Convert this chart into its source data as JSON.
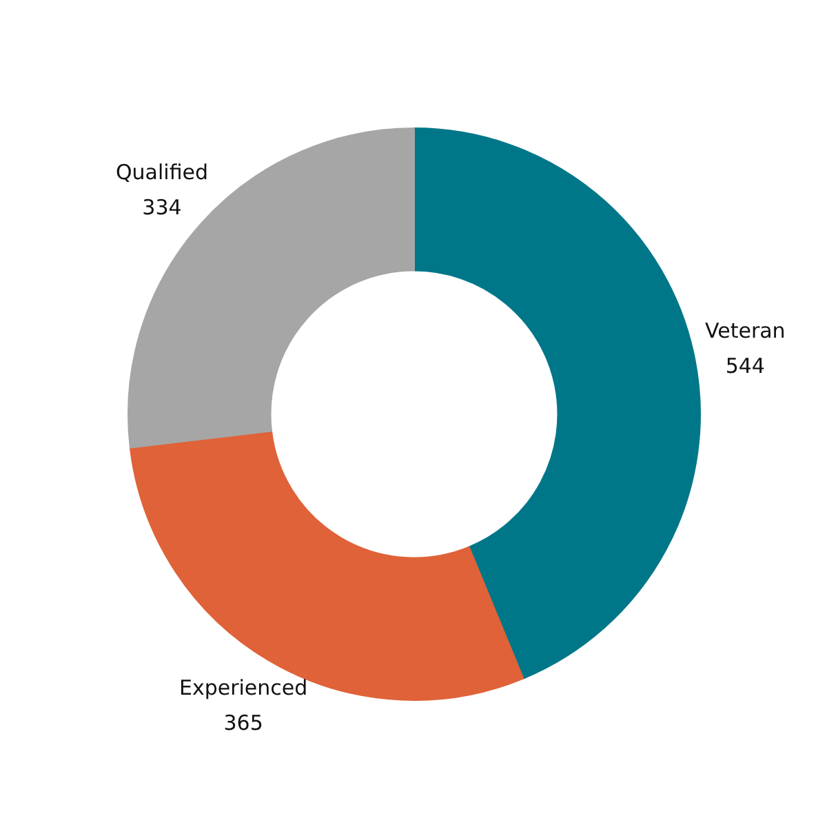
{
  "chart_data": {
    "type": "donut",
    "categories": [
      "Veteran",
      "Experienced",
      "Qualified"
    ],
    "values": [
      544,
      365,
      334
    ],
    "colors": [
      "#007789",
      "#e06239",
      "#a6a6a6"
    ],
    "data_labels": true
  }
}
